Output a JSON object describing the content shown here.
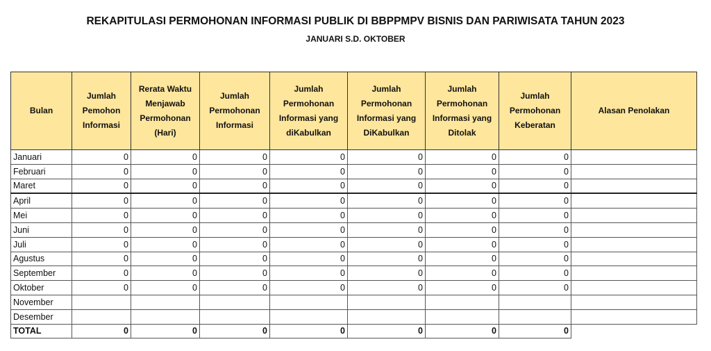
{
  "header": {
    "title": "REKAPITULASI PERMOHONAN INFORMASI PUBLIK  DI BBPPMPV BISNIS DAN PARIWISATA TAHUN 2023",
    "subtitle": "JANUARI S.D. OKTOBER"
  },
  "table": {
    "columns": [
      "Bulan",
      "Jumlah Pemohon Informasi",
      "Rerata Waktu Menjawab Permohonan (Hari)",
      "Jumlah Permohonan Informasi",
      "Jumlah Permohonan Informasi yang diKabulkan",
      "Jumlah Permohonan Informasi yang DiKabulkan",
      "Jumlah Permohonan Informasi yang Ditolak",
      "Jumlah Permohonan Keberatan",
      "Alasan Penolakan"
    ],
    "rows": [
      {
        "label": "Januari",
        "values": [
          0,
          0,
          0,
          0,
          0,
          0,
          0
        ]
      },
      {
        "label": "Februari",
        "values": [
          0,
          0,
          0,
          0,
          0,
          0,
          0
        ]
      },
      {
        "label": "Maret",
        "values": [
          0,
          0,
          0,
          0,
          0,
          0,
          0
        ]
      },
      {
        "label": "April",
        "values": [
          0,
          0,
          0,
          0,
          0,
          0,
          0
        ]
      },
      {
        "label": "Mei",
        "values": [
          0,
          0,
          0,
          0,
          0,
          0,
          0
        ]
      },
      {
        "label": "Juni",
        "values": [
          0,
          0,
          0,
          0,
          0,
          0,
          0
        ]
      },
      {
        "label": "Juli",
        "values": [
          0,
          0,
          0,
          0,
          0,
          0,
          0
        ]
      },
      {
        "label": "Agustus",
        "values": [
          0,
          0,
          0,
          0,
          0,
          0,
          0
        ]
      },
      {
        "label": "September",
        "values": [
          0,
          0,
          0,
          0,
          0,
          0,
          0
        ]
      },
      {
        "label": "Oktober",
        "values": [
          0,
          0,
          0,
          0,
          0,
          0,
          0
        ]
      },
      {
        "label": "November"
      },
      {
        "label": "Desember"
      }
    ],
    "total": {
      "label": "TOTAL",
      "values": [
        0,
        0,
        0,
        0,
        0,
        0,
        0
      ]
    }
  }
}
